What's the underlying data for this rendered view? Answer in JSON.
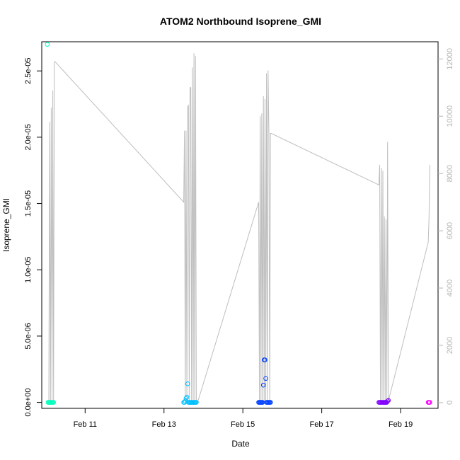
{
  "chart_data": {
    "type": "scatter",
    "title": "ATOM2 Northbound Isoprene_GMI",
    "xlabel": "Date",
    "ylabel": "Isoprene_GMI",
    "xlim": [
      9.9,
      19.95
    ],
    "ylim": [
      -4.5e-07,
      2.72e-05
    ],
    "y2lim": [
      -200,
      12600
    ],
    "x_ticks": [
      {
        "value": 11,
        "label": "Feb 11"
      },
      {
        "value": 13,
        "label": "Feb 13"
      },
      {
        "value": 15,
        "label": "Feb 15"
      },
      {
        "value": 17,
        "label": "Feb 17"
      },
      {
        "value": 19,
        "label": "Feb 19"
      }
    ],
    "y_ticks": [
      {
        "value": 0,
        "label": "0.0e+00"
      },
      {
        "value": 5e-06,
        "label": "5.0e-06"
      },
      {
        "value": 1e-05,
        "label": "1.0e-05"
      },
      {
        "value": 1.5e-05,
        "label": "1.5e-05"
      },
      {
        "value": 2e-05,
        "label": "2.0e-05"
      },
      {
        "value": 2.5e-05,
        "label": "2.5e-05"
      }
    ],
    "y2_ticks": [
      {
        "value": 0,
        "label": "0"
      },
      {
        "value": 2000,
        "label": "2000"
      },
      {
        "value": 4000,
        "label": "4000"
      },
      {
        "value": 6000,
        "label": "6000"
      },
      {
        "value": 8000,
        "label": "8000"
      },
      {
        "value": 10000,
        "label": "10000"
      },
      {
        "value": 12000,
        "label": "12000"
      }
    ],
    "altitude_line": {
      "color": "#bebebe",
      "x": [
        10.08,
        10.1,
        10.12,
        10.14,
        10.16,
        10.18,
        10.2,
        10.22,
        10.24,
        13.5,
        13.52,
        13.54,
        13.56,
        13.58,
        13.6,
        13.62,
        13.64,
        13.66,
        13.68,
        13.7,
        13.72,
        13.74,
        13.76,
        13.78,
        13.8,
        13.82,
        13.84,
        13.86,
        15.4,
        15.42,
        15.44,
        15.46,
        15.48,
        15.5,
        15.52,
        15.54,
        15.56,
        15.58,
        15.6,
        15.62,
        15.64,
        15.66,
        15.68,
        15.7,
        15.72,
        18.45,
        18.47,
        18.49,
        18.51,
        18.53,
        18.55,
        18.57,
        18.59,
        18.61,
        18.63,
        18.65,
        18.67,
        18.69,
        19.7,
        19.72,
        19.74
      ],
      "y": [
        50,
        9800,
        50,
        10300,
        50,
        10900,
        50,
        11900,
        11900,
        7000,
        9500,
        50,
        9500,
        50,
        10300,
        10400,
        50,
        11000,
        11000,
        50,
        11700,
        50,
        12200,
        50,
        12100,
        50,
        50,
        50,
        7000,
        50,
        10000,
        50,
        10100,
        50,
        10700,
        50,
        10600,
        50,
        11500,
        50,
        11600,
        9400,
        50,
        9400,
        9400,
        7600,
        8300,
        50,
        8200,
        50,
        8100,
        50,
        6500,
        50,
        6400,
        50,
        9100,
        50,
        5600,
        6400,
        8300
      ]
    },
    "series": [
      {
        "color": "#00ffbf",
        "x": [
          10.04,
          10.06,
          10.08,
          10.1,
          10.12,
          10.14,
          10.16,
          10.18,
          10.2
        ],
        "y": [
          2.7e-05,
          0,
          0,
          0,
          0,
          0,
          0,
          0,
          0
        ]
      },
      {
        "color": "#00bfff",
        "x": [
          13.5,
          13.52,
          13.54,
          13.56,
          13.58,
          13.6,
          13.62,
          13.64,
          13.66,
          13.68,
          13.7,
          13.72,
          13.74,
          13.76,
          13.78,
          13.8,
          13.82
        ],
        "y": [
          0,
          0,
          1e-07,
          3e-07,
          4e-07,
          1.4e-06,
          0,
          0,
          0,
          0,
          0,
          0,
          0,
          0,
          0,
          0,
          0
        ]
      },
      {
        "color": "#0040ff",
        "x": [
          15.4,
          15.42,
          15.44,
          15.46,
          15.48,
          15.5,
          15.52,
          15.54,
          15.56,
          15.58,
          15.6,
          15.62,
          15.64,
          15.66,
          15.68,
          15.7
        ],
        "y": [
          0,
          0,
          0,
          0,
          0,
          0,
          1.3e-06,
          3.2e-06,
          3.2e-06,
          1.8e-06,
          0,
          0,
          0,
          0,
          0,
          0
        ]
      },
      {
        "color": "#8000ff",
        "x": [
          18.45,
          18.47,
          18.49,
          18.51,
          18.53,
          18.55,
          18.57,
          18.59,
          18.61,
          18.63,
          18.65,
          18.67,
          18.69
        ],
        "y": [
          0,
          0,
          0,
          0,
          0,
          0,
          0,
          0,
          0,
          0,
          0,
          1e-07,
          1.5e-07
        ]
      },
      {
        "color": "#ff00ff",
        "x": [
          19.7,
          19.72,
          19.74
        ],
        "y": [
          0,
          0,
          0
        ]
      }
    ]
  }
}
